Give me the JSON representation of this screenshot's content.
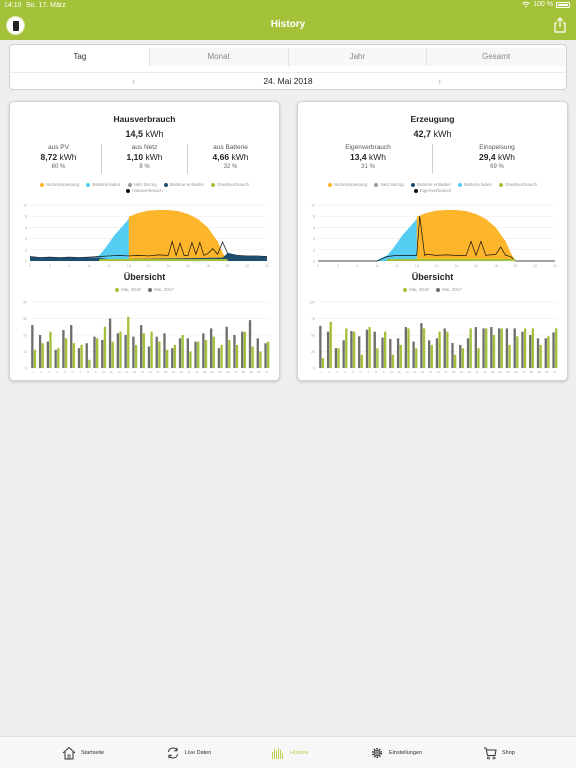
{
  "status": {
    "time": "14:10",
    "date": "So. 17. März",
    "battery": "100 %"
  },
  "nav": {
    "title": "History",
    "share_icon": "share-icon",
    "logo_icon": "app-logo"
  },
  "segments": [
    "Tag",
    "Monat",
    "Jahr",
    "Gesamt"
  ],
  "active_segment": 0,
  "date": "24. Mai 2018",
  "colors": {
    "green": "#a3c23a",
    "orange": "#fdb52b",
    "lightblue": "#55ccf2",
    "grey": "#9a9a9a",
    "darkblue": "#1e4d6e",
    "black": "#111111",
    "bar_current": "#a3c23a",
    "bar_prev": "#6e6e6e"
  },
  "cards": [
    {
      "title": "Hausverbrauch",
      "total": "14,5",
      "unit": "kWh",
      "stats": [
        {
          "label": "aus PV",
          "value": "8,72",
          "unit": "kWh",
          "pct": "60 %"
        },
        {
          "label": "aus Netz",
          "value": "1,10",
          "unit": "kWh",
          "pct": "8 %"
        },
        {
          "label": "aus Batterie",
          "value": "4,66",
          "unit": "kWh",
          "pct": "32 %"
        }
      ],
      "legend": [
        {
          "label": "Netzeinspeisung",
          "color": "#fdb52b"
        },
        {
          "label": "Batterie laden",
          "color": "#55ccf2"
        },
        {
          "label": "Netz Bezug",
          "color": "#9a9a9a"
        },
        {
          "label": "Batterie entladen",
          "color": "#1e4d6e"
        },
        {
          "label": "Direktverbrauch",
          "color": "#a3c23a"
        },
        {
          "label": "Hausverbrauch",
          "color": "#111111"
        }
      ],
      "overview_title": "Übersicht",
      "overview_legend": [
        {
          "label": "Mai, 2018",
          "color": "#a3c23a"
        },
        {
          "label": "Mai, 2017",
          "color": "#6e6e6e"
        }
      ]
    },
    {
      "title": "Erzeugung",
      "total": "42,7",
      "unit": "kWh",
      "stats": [
        {
          "label": "Eigenverbrauch",
          "value": "13,4",
          "unit": "kWh",
          "pct": "31 %"
        },
        {
          "label": "Einspeisung",
          "value": "29,4",
          "unit": "kWh",
          "pct": "69 %"
        }
      ],
      "legend": [
        {
          "label": "Netzeinspeisung",
          "color": "#fdb52b"
        },
        {
          "label": "Netz Bezug",
          "color": "#9a9a9a"
        },
        {
          "label": "Batterie entladen",
          "color": "#1e4d6e"
        },
        {
          "label": "Batterie laden",
          "color": "#55ccf2"
        },
        {
          "label": "Direktverbrauch",
          "color": "#a3c23a"
        },
        {
          "label": "Eigenverbrauch",
          "color": "#111111"
        }
      ],
      "overview_title": "Übersicht",
      "overview_legend": [
        {
          "label": "Mai, 2018",
          "color": "#a3c23a"
        },
        {
          "label": "Mai, 2017",
          "color": "#6e6e6e"
        }
      ]
    }
  ],
  "chart_data": [
    {
      "type": "area",
      "chart": "hausverbrauch-day",
      "ylim": [
        0,
        10
      ],
      "xlim": [
        0,
        24
      ],
      "grid": true,
      "series": [
        {
          "name": "Batterie laden",
          "x": [
            5,
            6,
            7,
            7.5,
            8,
            8.5,
            9,
            9.5,
            10,
            10.3
          ],
          "y": [
            0,
            0.3,
            1,
            2,
            3.2,
            4.5,
            5.5,
            6.5,
            7.5,
            8
          ]
        },
        {
          "name": "Netzeinspeisung",
          "x": [
            10,
            11,
            12,
            13,
            14,
            15,
            16,
            17,
            18,
            19,
            19.5,
            20
          ],
          "y": [
            7.9,
            8.6,
            9,
            9.1,
            9.1,
            8.9,
            8.4,
            7.5,
            6,
            3.5,
            1.5,
            0
          ]
        },
        {
          "name": "Hausverbrauch",
          "x": [
            0,
            1,
            2,
            3,
            4,
            5,
            6,
            7,
            8,
            9,
            10,
            11,
            12,
            13,
            14,
            14.4,
            14.8,
            15.2,
            15.6,
            16,
            16.4,
            16.8,
            17.2,
            17.6,
            18,
            18.5,
            19,
            19.5,
            20,
            21,
            22,
            23,
            24
          ],
          "y": [
            0.8,
            0.6,
            0.7,
            0.6,
            0.7,
            0.6,
            0.7,
            0.8,
            0.9,
            1,
            0.9,
            1,
            0.9,
            1.1,
            1,
            3.5,
            1,
            3.2,
            1,
            1,
            3.3,
            1.2,
            3.3,
            1,
            1.3,
            2.2,
            1.2,
            3.4,
            1.4,
            1,
            0.9,
            0.9,
            0.8
          ]
        },
        {
          "name": "Batterie entladen",
          "x": [
            0,
            1,
            2,
            3,
            4,
            5,
            6,
            7,
            8,
            19.5,
            20,
            21,
            22,
            23,
            24
          ],
          "y": [
            0.8,
            0.6,
            0.7,
            0.6,
            0.7,
            0.6,
            0.7,
            0.6,
            0.3,
            0.6,
            1.4,
            1,
            0.9,
            0.9,
            0.8
          ]
        }
      ]
    },
    {
      "type": "area",
      "chart": "erzeugung-day",
      "ylim": [
        0,
        10
      ],
      "xlim": [
        0,
        24
      ],
      "grid": true,
      "series": [
        {
          "name": "Batterie laden",
          "x": [
            6,
            7,
            7.5,
            8,
            8.5,
            9,
            9.5,
            10,
            10.3
          ],
          "y": [
            0.2,
            1,
            2,
            3.2,
            4.5,
            5.5,
            6.5,
            7.5,
            8
          ]
        },
        {
          "name": "Netzeinspeisung",
          "x": [
            10,
            11,
            12,
            13,
            14,
            15,
            16,
            17,
            18,
            19,
            19.5,
            20
          ],
          "y": [
            7.9,
            8.6,
            9,
            9.1,
            9.1,
            8.9,
            8.4,
            7.5,
            6,
            3.5,
            1.5,
            0
          ]
        },
        {
          "name": "Eigenverbrauch",
          "x": [
            0,
            6,
            7,
            8,
            9,
            10,
            10.3,
            10.8,
            11,
            12,
            13,
            14,
            15,
            15.5,
            16,
            16.5,
            17,
            18,
            18.5,
            19,
            19.5,
            20,
            21,
            24
          ],
          "y": [
            0,
            0,
            0.8,
            1,
            1,
            1,
            8,
            1,
            1.2,
            1,
            1.1,
            1,
            1,
            3.5,
            1,
            3.5,
            1,
            1.2,
            2.5,
            1,
            0.8,
            0,
            0,
            0
          ]
        }
      ]
    },
    {
      "type": "bar",
      "chart": "hausverbrauch-month",
      "ylim": [
        0,
        40
      ],
      "categories": [
        "1",
        "2",
        "3",
        "4",
        "5",
        "6",
        "7",
        "8",
        "9",
        "10",
        "11",
        "12",
        "13",
        "14",
        "15",
        "16",
        "17",
        "18",
        "19",
        "20",
        "21",
        "22",
        "23",
        "24",
        "25",
        "26",
        "27",
        "28",
        "29",
        "30",
        "31"
      ],
      "series": [
        {
          "name": "Mai, 2018",
          "values": [
            11,
            15,
            22,
            12,
            18,
            15,
            14,
            5,
            18,
            25,
            16,
            22,
            31,
            14,
            21,
            22,
            16,
            11,
            14,
            20,
            10,
            16,
            17,
            19,
            14,
            17,
            14,
            22,
            13,
            10,
            16
          ]
        },
        {
          "name": "Mai, 2017",
          "values": [
            26,
            20,
            16,
            11,
            23,
            26,
            12,
            15,
            19,
            17,
            30,
            21,
            20,
            19,
            26,
            13,
            19,
            21,
            12,
            18,
            18,
            16,
            21,
            24,
            12,
            25,
            20,
            22,
            29,
            18,
            15
          ]
        }
      ]
    },
    {
      "type": "bar",
      "chart": "erzeugung-month",
      "ylim": [
        0,
        100
      ],
      "categories": [
        "1",
        "2",
        "3",
        "4",
        "5",
        "6",
        "7",
        "8",
        "9",
        "10",
        "11",
        "12",
        "13",
        "14",
        "15",
        "16",
        "17",
        "18",
        "19",
        "20",
        "21",
        "22",
        "23",
        "24",
        "25",
        "26",
        "27",
        "28",
        "29",
        "30",
        "31"
      ],
      "series": [
        {
          "name": "Mai, 2018",
          "values": [
            15,
            70,
            30,
            60,
            55,
            20,
            62,
            30,
            55,
            20,
            35,
            60,
            30,
            60,
            35,
            55,
            55,
            20,
            30,
            60,
            30,
            60,
            50,
            60,
            35,
            48,
            60,
            60,
            35,
            48,
            60
          ]
        },
        {
          "name": "Mai, 2017",
          "values": [
            64,
            55,
            30,
            42,
            56,
            48,
            58,
            55,
            46,
            44,
            45,
            62,
            40,
            68,
            42,
            45,
            60,
            38,
            35,
            45,
            62,
            60,
            62,
            60,
            60,
            60,
            55,
            50,
            45,
            45,
            54
          ]
        }
      ]
    }
  ],
  "tabs": [
    {
      "label": "Startseite",
      "icon": "home-icon"
    },
    {
      "label": "Live Daten",
      "icon": "refresh-icon"
    },
    {
      "label": "Historie",
      "icon": "history-bars-icon"
    },
    {
      "label": "Einstellungen",
      "icon": "gear-icon"
    },
    {
      "label": "Shop",
      "icon": "cart-icon"
    }
  ],
  "active_tab": 2
}
